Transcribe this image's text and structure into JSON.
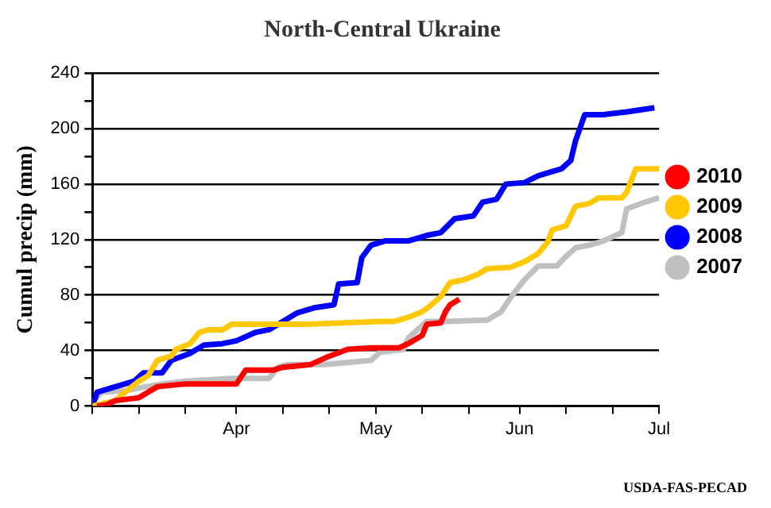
{
  "chart_data": {
    "type": "line",
    "title": "North-Central Ukraine",
    "ylabel": "Cumul precip (mm)",
    "annotations": [
      "USDA-FAS-PECAD"
    ],
    "xlim": [
      "--03-01",
      "--07-01"
    ],
    "xticks": [
      {
        "value": "--03-01",
        "label": null
      },
      {
        "value": "--03-11",
        "label": null
      },
      {
        "value": "--03-21",
        "label": null
      },
      {
        "value": "--04-01",
        "label": "Apr"
      },
      {
        "value": "--04-11",
        "label": null
      },
      {
        "value": "--04-21",
        "label": null
      },
      {
        "value": "--05-01",
        "label": "May"
      },
      {
        "value": "--05-11",
        "label": null
      },
      {
        "value": "--05-21",
        "label": null
      },
      {
        "value": "--06-01",
        "label": "Jun"
      },
      {
        "value": "--06-11",
        "label": null
      },
      {
        "value": "--06-21",
        "label": null
      },
      {
        "value": "--07-01",
        "label": "Jul"
      }
    ],
    "ylim": [
      0,
      240
    ],
    "yticks": [
      0,
      {
        "value": 20,
        "label": null
      },
      40,
      {
        "value": 60,
        "label": null
      },
      80,
      {
        "value": 100,
        "label": null
      },
      120,
      {
        "value": 140,
        "label": null
      },
      160,
      {
        "value": 180,
        "label": null
      },
      200,
      {
        "value": 220,
        "label": null
      },
      240
    ],
    "grid": "y",
    "legend": "right",
    "marker": "none",
    "line_style": "solid",
    "series": [
      {
        "name": "2010",
        "color": "#ff0000",
        "x": [
          "--03-02",
          "--03-04",
          "--03-06",
          "--03-11",
          "--03-13",
          "--03-15",
          "--03-21",
          "--04-01",
          "--04-03",
          "--04-09",
          "--04-11",
          "--04-17",
          "--04-21",
          "--04-25",
          "--04-30",
          "--05-06",
          "--05-08",
          "--05-11",
          "--05-12",
          "--05-15",
          "--05-16",
          "--05-17",
          "--05-19"
        ],
        "values": [
          0,
          1,
          4,
          6,
          10,
          14,
          16,
          16,
          26,
          26,
          28,
          30,
          36,
          41,
          42,
          42,
          45,
          51,
          59,
          60,
          68,
          73,
          77
        ]
      },
      {
        "name": "2009",
        "color": "#ffc800",
        "x": [
          "--03-01",
          "--03-06",
          "--03-08",
          "--03-11",
          "--03-13",
          "--03-15",
          "--03-18",
          "--03-19",
          "--03-22",
          "--03-24",
          "--03-26",
          "--03-29",
          "--03-31",
          "--04-11",
          "--04-16",
          "--05-02",
          "--05-05",
          "--05-08",
          "--05-11",
          "--05-13",
          "--05-15",
          "--05-17",
          "--05-20",
          "--05-23",
          "--05-25",
          "--05-30",
          "--06-02",
          "--06-05",
          "--06-07",
          "--06-08",
          "--06-11",
          "--06-13",
          "--06-16",
          "--06-18",
          "--06-23",
          "--06-24",
          "--06-26",
          "--07-01"
        ],
        "values": [
          0,
          4,
          10,
          18,
          22,
          33,
          36,
          41,
          45,
          53,
          55,
          55,
          59,
          59,
          59,
          61,
          61,
          64,
          68,
          73,
          79,
          89,
          91,
          95,
          99,
          100,
          104,
          110,
          118,
          127,
          130,
          144,
          146,
          150,
          150,
          154,
          171,
          171
        ]
      },
      {
        "name": "2008",
        "color": "#0000ff",
        "x": [
          "--03-01",
          "--03-02",
          "--03-06",
          "--03-10",
          "--03-12",
          "--03-16",
          "--03-18",
          "--03-22",
          "--03-25",
          "--03-29",
          "--04-01",
          "--04-05",
          "--04-08",
          "--04-11",
          "--04-14",
          "--04-18",
          "--04-22",
          "--04-23",
          "--04-27",
          "--04-28",
          "--04-30",
          "--05-03",
          "--05-08",
          "--05-12",
          "--05-15",
          "--05-18",
          "--05-22",
          "--05-24",
          "--05-27",
          "--05-29",
          "--06-02",
          "--06-05",
          "--06-07",
          "--06-10",
          "--06-12",
          "--06-13",
          "--06-15",
          "--06-19",
          "--06-24",
          "--06-30"
        ],
        "values": [
          0,
          10,
          14,
          18,
          24,
          24,
          33,
          38,
          44,
          45,
          47,
          53,
          55,
          61,
          67,
          71,
          73,
          88,
          89,
          107,
          116,
          119,
          119,
          123,
          125,
          135,
          137,
          147,
          149,
          160,
          161,
          166,
          168,
          171,
          177,
          191,
          210,
          210,
          212,
          215
        ]
      },
      {
        "name": "2007",
        "color": "#c0c0c0",
        "x": [
          "--03-01",
          "--03-03",
          "--03-08",
          "--03-11",
          "--03-16",
          "--03-21",
          "--03-31",
          "--04-08",
          "--04-10",
          "--04-12",
          "--04-20",
          "--04-30",
          "--05-02",
          "--05-07",
          "--05-08",
          "--05-12",
          "--05-16",
          "--05-25",
          "--05-28",
          "--05-30",
          "--06-02",
          "--06-05",
          "--06-09",
          "--06-11",
          "--06-13",
          "--06-16",
          "--06-19",
          "--06-23",
          "--06-24",
          "--06-28",
          "--07-01"
        ],
        "values": [
          3,
          10,
          11,
          13,
          16,
          18,
          20,
          20,
          28,
          30,
          30,
          33,
          39,
          41,
          49,
          61,
          61,
          62,
          68,
          78,
          91,
          101,
          101,
          108,
          114,
          116,
          119,
          125,
          142,
          147,
          150
        ]
      }
    ]
  }
}
